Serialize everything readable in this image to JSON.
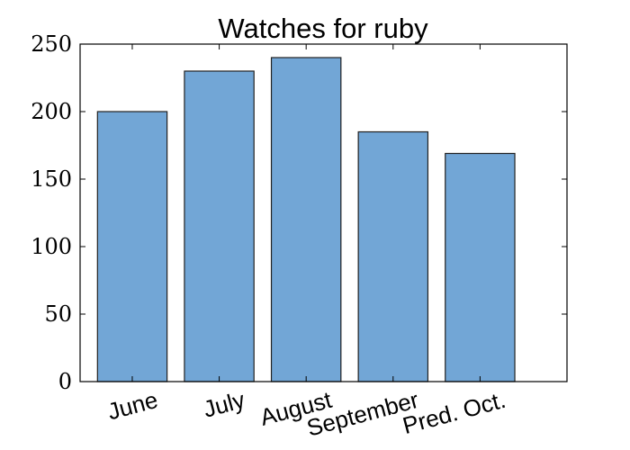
{
  "chart_data": {
    "type": "bar",
    "title": "Watches for ruby",
    "categories": [
      "June",
      "July",
      "August",
      "September",
      "Pred. Oct."
    ],
    "values": [
      200,
      230,
      240,
      185,
      169
    ],
    "ylim": [
      0,
      250
    ],
    "yticks": [
      0,
      50,
      100,
      150,
      200,
      250
    ],
    "xlabel": "",
    "ylabel": "",
    "grid": false,
    "bar_color": "#72a6d6"
  }
}
